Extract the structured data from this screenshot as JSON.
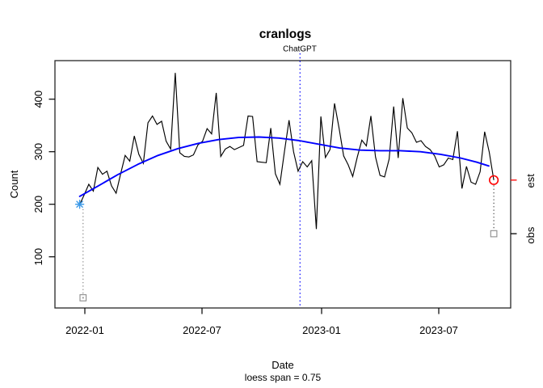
{
  "title": "cranlogs",
  "annotation": {
    "label": "ChatGPT",
    "color": "#0000ff",
    "date": "2022-11-30"
  },
  "subtitle": "loess span = 0.75",
  "axes": {
    "x": {
      "label": "Date",
      "tick_labels": [
        "2022-01",
        "2022-07",
        "2023-01",
        "2023-07"
      ],
      "tick_dates": [
        "2022-01-01",
        "2022-07-01",
        "2023-01-01",
        "2023-07-01"
      ]
    },
    "y": {
      "label": "Count",
      "tick_labels": [
        "100",
        "200",
        "300",
        "400"
      ],
      "tick_values": [
        100,
        200,
        300,
        400
      ]
    }
  },
  "right_margin": {
    "est_label": "est",
    "est_color": "#ff0000",
    "est_value": 246,
    "obs_label": "obs",
    "obs_color": "#000000",
    "obs_value": 144
  },
  "chart_data": {
    "type": "line",
    "title": "cranlogs",
    "xlabel": "Date",
    "ylabel": "Count",
    "subtitle": "loess span = 0.75",
    "grid": false,
    "legend": "none",
    "ylim": [
      0,
      473
    ],
    "x_start_date": "2021-12-26",
    "x_step_days": 7,
    "x_end_date": "2023-09-24",
    "y_ticks": [
      100,
      200,
      300,
      400
    ],
    "series": [
      {
        "name": "observed weekly downloads",
        "color": "#000000",
        "style": "solid",
        "values": [
          199,
          218,
          238,
          225,
          270,
          257,
          263,
          235,
          221,
          258,
          293,
          282,
          330,
          295,
          278,
          355,
          368,
          352,
          358,
          320,
          305,
          450,
          298,
          291,
          290,
          294,
          313,
          320,
          344,
          334,
          412,
          291,
          305,
          310,
          304,
          308,
          312,
          368,
          367,
          281,
          280,
          279,
          345,
          258,
          238,
          300,
          360,
          300,
          263,
          281,
          271,
          283,
          153,
          367,
          289,
          304,
          392,
          345,
          292,
          275,
          253,
          290,
          322,
          311,
          368,
          290,
          255,
          252,
          286,
          386,
          288,
          402,
          345,
          336,
          318,
          321,
          310,
          304,
          292,
          271,
          275,
          288,
          285,
          339,
          230,
          272,
          242,
          238,
          262,
          338,
          299,
          246
        ]
      },
      {
        "name": "loess fit (span = 0.75)",
        "color": "#0000ff",
        "style": "solid",
        "points_week_index_value": [
          [
            0,
            215
          ],
          [
            3.9,
            234
          ],
          [
            8.3,
            256
          ],
          [
            12.8,
            276
          ],
          [
            17.2,
            293
          ],
          [
            21.6,
            306
          ],
          [
            26.1,
            316
          ],
          [
            30.5,
            323
          ],
          [
            34.9,
            327
          ],
          [
            39.4,
            328
          ],
          [
            43.8,
            326
          ],
          [
            48.3,
            321
          ],
          [
            52.7,
            314
          ],
          [
            57.1,
            307
          ],
          [
            61.6,
            303
          ],
          [
            66,
            302
          ],
          [
            70.4,
            302
          ],
          [
            74.9,
            300
          ],
          [
            79.3,
            295
          ],
          [
            83.7,
            288
          ],
          [
            87.3,
            280
          ],
          [
            89.9,
            273
          ]
        ]
      }
    ],
    "event_line": {
      "date": "2022-11-30",
      "label": "ChatGPT",
      "color": "#0000ff",
      "style": "dotted"
    },
    "endpoint_markers": {
      "start_est": {
        "week_index": 0,
        "value": 200,
        "marker": "asterisk",
        "color": "#3b99e8"
      },
      "start_obs": {
        "week_index": 0,
        "value": 22,
        "marker": "open-square",
        "color": "#8c8c8c"
      },
      "end_est": {
        "week_index": 91,
        "value": 246,
        "marker": "open-circle",
        "color": "#ff0000"
      },
      "end_obs": {
        "week_index": 91,
        "value": 144,
        "marker": "open-square",
        "color": "#8c8c8c"
      }
    }
  }
}
